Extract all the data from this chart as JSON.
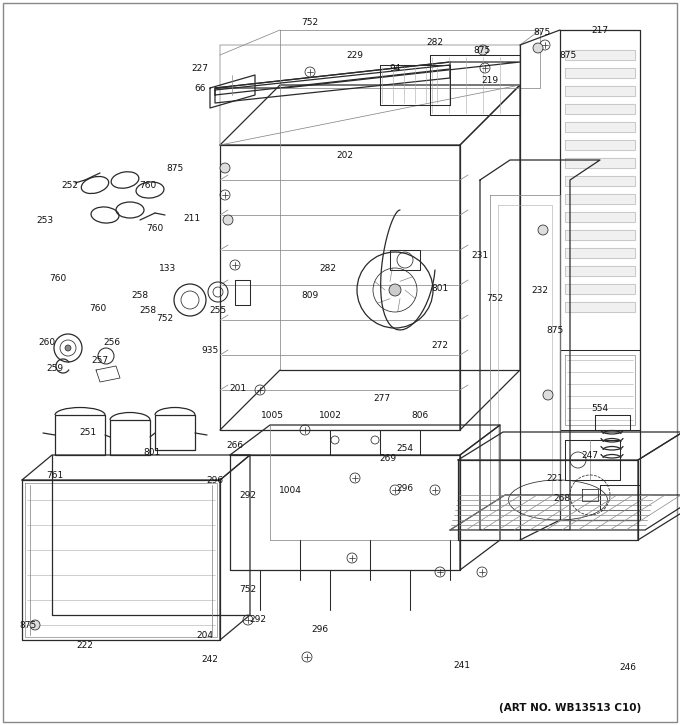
{
  "art_no": "(ART NO. WB13513 C10)",
  "background_color": "#ffffff",
  "figsize": [
    6.8,
    7.25
  ],
  "dpi": 100
}
